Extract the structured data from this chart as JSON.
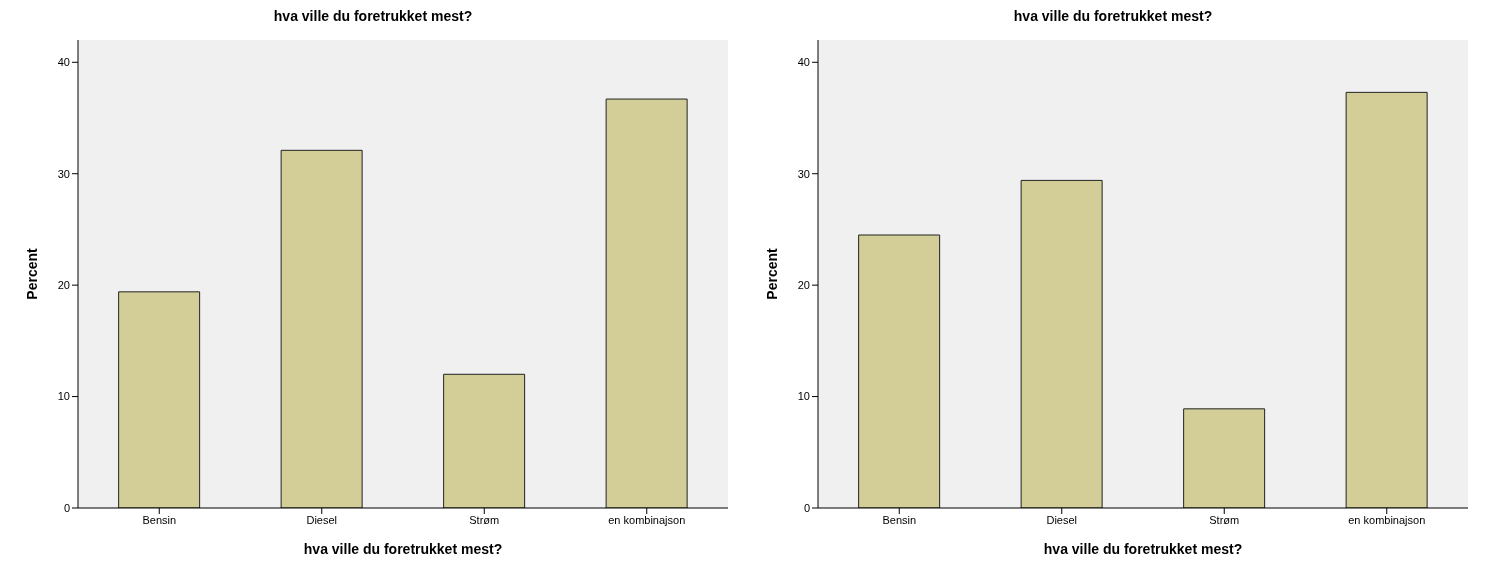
{
  "chart_data": [
    {
      "type": "bar",
      "title": "hva ville du foretrukket mest?",
      "xlabel": "hva ville du foretrukket mest?",
      "ylabel": "Percent",
      "categories": [
        "Bensin",
        "Diesel",
        "Strøm",
        "en kombinajson"
      ],
      "values": [
        19.4,
        32.1,
        12.0,
        36.7
      ],
      "color": "#d3ce98",
      "ylim": [
        0,
        42
      ],
      "yticks": [
        0,
        10,
        20,
        30,
        40
      ],
      "grid": false,
      "legend": false
    },
    {
      "type": "bar",
      "title": "hva ville du foretrukket mest?",
      "xlabel": "hva ville du foretrukket mest?",
      "ylabel": "Percent",
      "categories": [
        "Bensin",
        "Diesel",
        "Strøm",
        "en kombinajson"
      ],
      "values": [
        24.5,
        29.4,
        8.9,
        37.3
      ],
      "color": "#d3ce98",
      "ylim": [
        0,
        42
      ],
      "yticks": [
        0,
        10,
        20,
        30,
        40
      ],
      "grid": false,
      "legend": false
    }
  ]
}
